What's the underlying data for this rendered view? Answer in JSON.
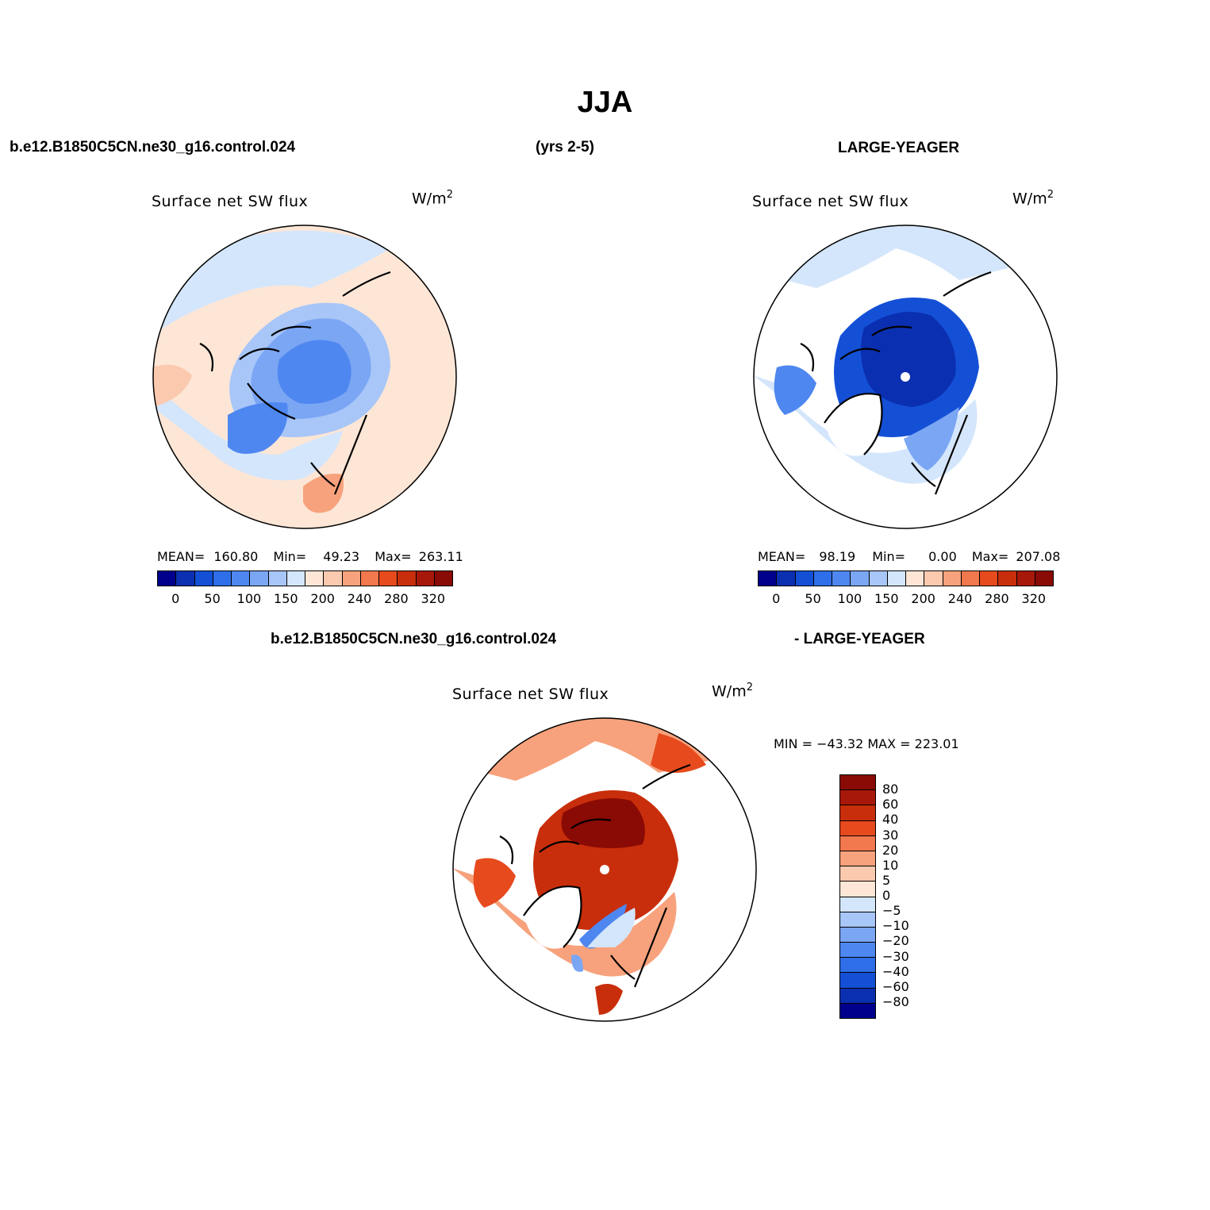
{
  "title": "JJA",
  "header": {
    "case": "b.e12.B1850C5CN.ne30_g16.control.024",
    "years": "(yrs 2-5)",
    "obs": "LARGE-YEAGER"
  },
  "diff_header": {
    "left": "b.e12.B1850C5CN.ne30_g16.control.024",
    "right": "- LARGE-YEAGER"
  },
  "colors": {
    "seq": [
      "#00008c",
      "#0a2fb0",
      "#1450d6",
      "#2e6ee8",
      "#4f87f0",
      "#7aa6f4",
      "#a8c6f8",
      "#d4e6fb",
      "#fde6d6",
      "#fbc9ae",
      "#f7a27c",
      "#f2784d",
      "#e64a1d",
      "#c82e0b",
      "#a8180a",
      "#8a0a05"
    ],
    "diff": [
      "#8a0a05",
      "#a8180a",
      "#c82e0b",
      "#e64a1d",
      "#f2784d",
      "#f7a27c",
      "#fbc9ae",
      "#fde6d6",
      "#d4e6fb",
      "#a8c6f8",
      "#7aa6f4",
      "#4f87f0",
      "#2e6ee8",
      "#1450d6",
      "#0a2fb0",
      "#00008c"
    ]
  },
  "panels": [
    {
      "id": "model",
      "title": "Surface net SW flux",
      "units_base": "W/m",
      "units_exp": "2",
      "mean_label": "MEAN=",
      "mean": "160.80",
      "min_label": "Min=",
      "min": "49.23",
      "max_label": "Max=",
      "max": "263.11",
      "cb_labels": [
        "0",
        "50",
        "100",
        "150",
        "200",
        "240",
        "280",
        "320"
      ]
    },
    {
      "id": "obs",
      "title": "Surface net SW flux",
      "units_base": "W/m",
      "units_exp": "2",
      "mean_label": "MEAN=",
      "mean": "98.19",
      "min_label": "Min=",
      "min": "0.00",
      "max_label": "Max=",
      "max": "207.08",
      "cb_labels": [
        "0",
        "50",
        "100",
        "150",
        "200",
        "240",
        "280",
        "320"
      ]
    },
    {
      "id": "diff",
      "title": "Surface net SW flux",
      "units_base": "W/m",
      "units_exp": "2",
      "minmax": "MIN = −43.32  MAX = 223.01",
      "cb_labels": [
        "80",
        "60",
        "40",
        "30",
        "20",
        "10",
        "5",
        "0",
        "−5",
        "−10",
        "−20",
        "−30",
        "−40",
        "−60",
        "−80"
      ]
    }
  ],
  "chart_data": [
    {
      "type": "heatmap",
      "projection": "north-polar-stereographic",
      "title": "Surface net SW flux",
      "subtitle": "b.e12.B1850C5CN.ne30_g16.control.024",
      "units": "W/m2",
      "mean": 160.8,
      "min": 49.23,
      "max": 263.11,
      "levels": [
        0,
        50,
        100,
        150,
        200,
        240,
        280,
        320
      ]
    },
    {
      "type": "heatmap",
      "projection": "north-polar-stereographic",
      "title": "Surface net SW flux",
      "subtitle": "LARGE-YEAGER",
      "units": "W/m2",
      "mean": 98.19,
      "min": 0.0,
      "max": 207.08,
      "levels": [
        0,
        50,
        100,
        150,
        200,
        240,
        280,
        320
      ]
    },
    {
      "type": "heatmap",
      "projection": "north-polar-stereographic",
      "title": "Surface net SW flux",
      "subtitle": "b.e12.B1850C5CN.ne30_g16.control.024 - LARGE-YEAGER",
      "units": "W/m2",
      "min": -43.32,
      "max": 223.01,
      "levels": [
        -80,
        -60,
        -40,
        -30,
        -20,
        -10,
        -5,
        0,
        5,
        10,
        20,
        30,
        40,
        60,
        80
      ]
    }
  ]
}
